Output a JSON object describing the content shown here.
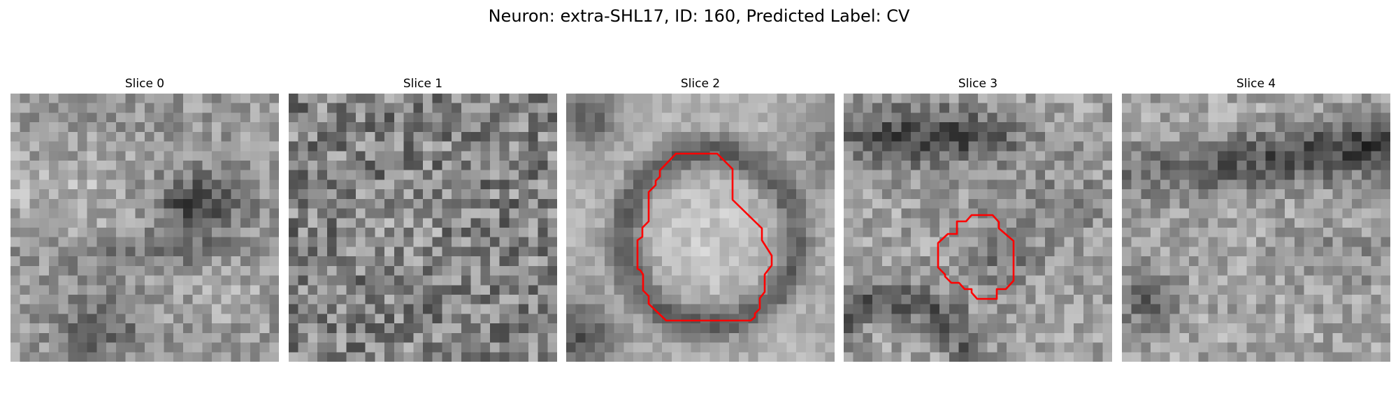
{
  "figure": {
    "title": "Neuron: extra-SHL17, ID: 160, Predicted Label: CV"
  },
  "panels": [
    {
      "title": "Slice 0",
      "has_contour": false
    },
    {
      "title": "Slice 1",
      "has_contour": false
    },
    {
      "title": "Slice 2",
      "has_contour": true
    },
    {
      "title": "Slice 3",
      "has_contour": true
    },
    {
      "title": "Slice 4",
      "has_contour": false
    }
  ],
  "colors": {
    "contour": "#ff0000",
    "colormap": "grayscale"
  }
}
